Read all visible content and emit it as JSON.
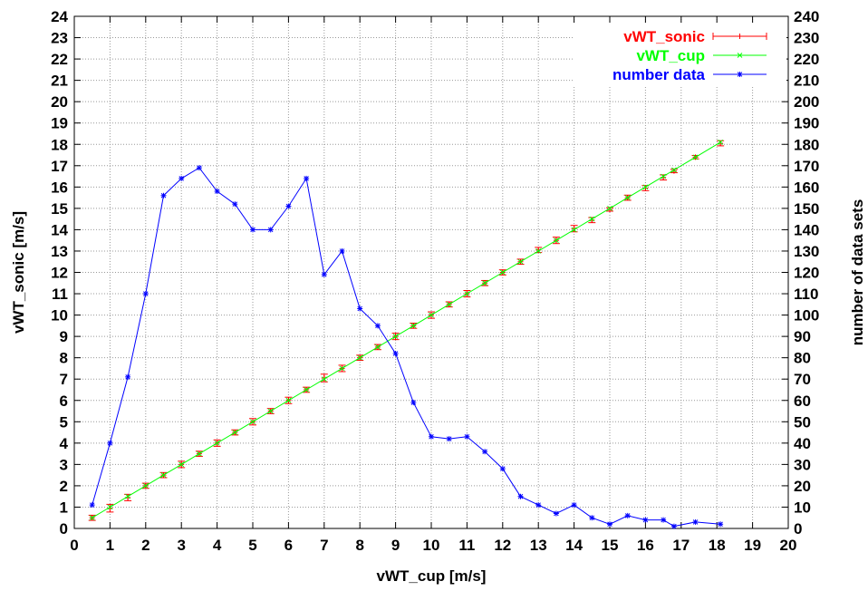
{
  "chart_data": {
    "type": "line",
    "xlabel": "vWT_cup [m/s]",
    "ylabel": "vWT_sonic [m/s]",
    "y2label": "number of data sets",
    "xlim": [
      0,
      20
    ],
    "ylim": [
      0,
      24
    ],
    "y2lim": [
      0,
      240
    ],
    "xticks": [
      "0",
      "1",
      "2",
      "3",
      "4",
      "5",
      "6",
      "7",
      "8",
      "9",
      "10",
      "11",
      "12",
      "13",
      "14",
      "15",
      "16",
      "17",
      "18",
      "19",
      "20"
    ],
    "yticks": [
      "0",
      "1",
      "2",
      "3",
      "4",
      "5",
      "6",
      "7",
      "8",
      "9",
      "10",
      "11",
      "12",
      "13",
      "14",
      "15",
      "16",
      "17",
      "18",
      "19",
      "20",
      "21",
      "22",
      "23",
      "24"
    ],
    "y2ticks": [
      "0",
      "10",
      "20",
      "30",
      "40",
      "50",
      "60",
      "70",
      "80",
      "90",
      "100",
      "110",
      "120",
      "130",
      "140",
      "150",
      "160",
      "170",
      "180",
      "190",
      "200",
      "210",
      "220",
      "230",
      "240"
    ],
    "grid": true,
    "legend_position": "top-right",
    "series": [
      {
        "name": "vWT_sonic",
        "color": "#ff0000",
        "style": "errorbars",
        "axis": "left",
        "x": [
          0.5,
          1.0,
          1.5,
          2.0,
          2.5,
          3.0,
          3.5,
          4.0,
          4.5,
          5.0,
          5.5,
          6.0,
          6.5,
          7.0,
          7.5,
          8.0,
          8.5,
          9.0,
          9.5,
          10.0,
          10.5,
          11.0,
          11.5,
          12.0,
          12.5,
          13.0,
          13.5,
          14.0,
          14.5,
          15.0,
          15.5,
          16.0,
          16.5,
          16.8,
          17.4,
          18.1
        ],
        "y": [
          0.5,
          0.95,
          1.45,
          2.0,
          2.5,
          3.0,
          3.5,
          4.0,
          4.5,
          5.0,
          5.5,
          6.0,
          6.5,
          7.05,
          7.5,
          8.0,
          8.5,
          9.0,
          9.5,
          10.0,
          10.5,
          11.0,
          11.5,
          12.0,
          12.5,
          13.05,
          13.5,
          14.05,
          14.45,
          14.95,
          15.5,
          15.95,
          16.45,
          16.75,
          17.4,
          18.05
        ],
        "err": [
          0.12,
          0.18,
          0.15,
          0.12,
          0.12,
          0.15,
          0.12,
          0.15,
          0.12,
          0.15,
          0.12,
          0.15,
          0.12,
          0.18,
          0.15,
          0.12,
          0.12,
          0.15,
          0.12,
          0.15,
          0.12,
          0.15,
          0.12,
          0.12,
          0.12,
          0.12,
          0.15,
          0.15,
          0.12,
          0.08,
          0.12,
          0.12,
          0.12,
          0.08,
          0.08,
          0.12
        ]
      },
      {
        "name": "vWT_cup",
        "color": "#00ff00",
        "style": "linepoints",
        "axis": "left",
        "x": [
          0.5,
          1.0,
          1.5,
          2.0,
          2.5,
          3.0,
          3.5,
          4.0,
          4.5,
          5.0,
          5.5,
          6.0,
          6.5,
          7.0,
          7.5,
          8.0,
          8.5,
          9.0,
          9.5,
          10.0,
          10.5,
          11.0,
          11.5,
          12.0,
          12.5,
          13.0,
          13.5,
          14.0,
          14.5,
          15.0,
          15.5,
          16.0,
          16.5,
          16.8,
          17.4,
          18.1
        ],
        "y": [
          0.5,
          1.0,
          1.5,
          2.0,
          2.5,
          3.0,
          3.5,
          4.0,
          4.5,
          5.0,
          5.5,
          6.0,
          6.5,
          7.0,
          7.5,
          8.0,
          8.5,
          9.0,
          9.5,
          10.0,
          10.5,
          11.0,
          11.5,
          12.0,
          12.5,
          13.0,
          13.5,
          14.0,
          14.5,
          15.0,
          15.5,
          16.0,
          16.5,
          16.8,
          17.4,
          18.1
        ]
      },
      {
        "name": "number data",
        "color": "#0000ff",
        "style": "linepoints",
        "axis": "right",
        "x": [
          0.5,
          1.0,
          1.5,
          2.0,
          2.5,
          3.0,
          3.5,
          4.0,
          4.5,
          5.0,
          5.5,
          6.0,
          6.5,
          7.0,
          7.5,
          8.0,
          8.5,
          9.0,
          9.5,
          10.0,
          10.5,
          11.0,
          11.5,
          12.0,
          12.5,
          13.0,
          13.5,
          14.0,
          14.5,
          15.0,
          15.5,
          16.0,
          16.5,
          16.8,
          17.4,
          18.1
        ],
        "y": [
          11,
          40,
          71,
          110,
          156,
          164,
          169,
          158,
          152,
          140,
          140,
          151,
          164,
          119,
          130,
          103,
          95,
          82,
          59,
          43,
          42,
          43,
          36,
          28,
          15,
          11,
          7,
          11,
          5,
          2,
          6,
          4,
          4,
          1,
          3,
          2
        ]
      }
    ]
  }
}
